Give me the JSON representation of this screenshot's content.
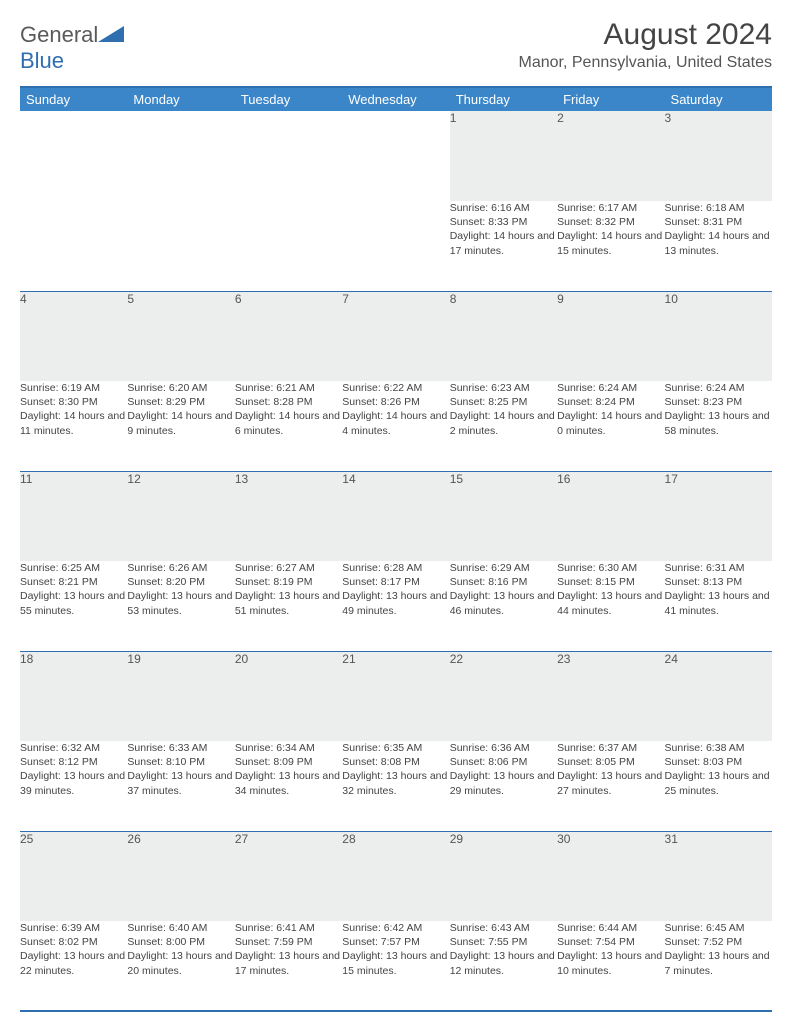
{
  "brand": {
    "part1": "General",
    "part2": "Blue"
  },
  "title": "August 2024",
  "location": "Manor, Pennsylvania, United States",
  "colors": {
    "header_bg": "#3b86c8",
    "header_text": "#ffffff",
    "border": "#2f6fb0",
    "daynum_bg": "#eceded",
    "body_text": "#444444",
    "page_bg": "#ffffff"
  },
  "typography": {
    "title_fontsize": 30,
    "location_fontsize": 16,
    "dayheader_fontsize": 13,
    "daynum_fontsize": 12,
    "detail_fontsize": 10.5
  },
  "layout": {
    "columns": 7,
    "rows": 5,
    "first_day_column": 4
  },
  "day_headers": [
    "Sunday",
    "Monday",
    "Tuesday",
    "Wednesday",
    "Thursday",
    "Friday",
    "Saturday"
  ],
  "weeks": [
    [
      null,
      null,
      null,
      null,
      {
        "n": "1",
        "sunrise": "Sunrise: 6:16 AM",
        "sunset": "Sunset: 8:33 PM",
        "day": "Daylight: 14 hours and 17 minutes."
      },
      {
        "n": "2",
        "sunrise": "Sunrise: 6:17 AM",
        "sunset": "Sunset: 8:32 PM",
        "day": "Daylight: 14 hours and 15 minutes."
      },
      {
        "n": "3",
        "sunrise": "Sunrise: 6:18 AM",
        "sunset": "Sunset: 8:31 PM",
        "day": "Daylight: 14 hours and 13 minutes."
      }
    ],
    [
      {
        "n": "4",
        "sunrise": "Sunrise: 6:19 AM",
        "sunset": "Sunset: 8:30 PM",
        "day": "Daylight: 14 hours and 11 minutes."
      },
      {
        "n": "5",
        "sunrise": "Sunrise: 6:20 AM",
        "sunset": "Sunset: 8:29 PM",
        "day": "Daylight: 14 hours and 9 minutes."
      },
      {
        "n": "6",
        "sunrise": "Sunrise: 6:21 AM",
        "sunset": "Sunset: 8:28 PM",
        "day": "Daylight: 14 hours and 6 minutes."
      },
      {
        "n": "7",
        "sunrise": "Sunrise: 6:22 AM",
        "sunset": "Sunset: 8:26 PM",
        "day": "Daylight: 14 hours and 4 minutes."
      },
      {
        "n": "8",
        "sunrise": "Sunrise: 6:23 AM",
        "sunset": "Sunset: 8:25 PM",
        "day": "Daylight: 14 hours and 2 minutes."
      },
      {
        "n": "9",
        "sunrise": "Sunrise: 6:24 AM",
        "sunset": "Sunset: 8:24 PM",
        "day": "Daylight: 14 hours and 0 minutes."
      },
      {
        "n": "10",
        "sunrise": "Sunrise: 6:24 AM",
        "sunset": "Sunset: 8:23 PM",
        "day": "Daylight: 13 hours and 58 minutes."
      }
    ],
    [
      {
        "n": "11",
        "sunrise": "Sunrise: 6:25 AM",
        "sunset": "Sunset: 8:21 PM",
        "day": "Daylight: 13 hours and 55 minutes."
      },
      {
        "n": "12",
        "sunrise": "Sunrise: 6:26 AM",
        "sunset": "Sunset: 8:20 PM",
        "day": "Daylight: 13 hours and 53 minutes."
      },
      {
        "n": "13",
        "sunrise": "Sunrise: 6:27 AM",
        "sunset": "Sunset: 8:19 PM",
        "day": "Daylight: 13 hours and 51 minutes."
      },
      {
        "n": "14",
        "sunrise": "Sunrise: 6:28 AM",
        "sunset": "Sunset: 8:17 PM",
        "day": "Daylight: 13 hours and 49 minutes."
      },
      {
        "n": "15",
        "sunrise": "Sunrise: 6:29 AM",
        "sunset": "Sunset: 8:16 PM",
        "day": "Daylight: 13 hours and 46 minutes."
      },
      {
        "n": "16",
        "sunrise": "Sunrise: 6:30 AM",
        "sunset": "Sunset: 8:15 PM",
        "day": "Daylight: 13 hours and 44 minutes."
      },
      {
        "n": "17",
        "sunrise": "Sunrise: 6:31 AM",
        "sunset": "Sunset: 8:13 PM",
        "day": "Daylight: 13 hours and 41 minutes."
      }
    ],
    [
      {
        "n": "18",
        "sunrise": "Sunrise: 6:32 AM",
        "sunset": "Sunset: 8:12 PM",
        "day": "Daylight: 13 hours and 39 minutes."
      },
      {
        "n": "19",
        "sunrise": "Sunrise: 6:33 AM",
        "sunset": "Sunset: 8:10 PM",
        "day": "Daylight: 13 hours and 37 minutes."
      },
      {
        "n": "20",
        "sunrise": "Sunrise: 6:34 AM",
        "sunset": "Sunset: 8:09 PM",
        "day": "Daylight: 13 hours and 34 minutes."
      },
      {
        "n": "21",
        "sunrise": "Sunrise: 6:35 AM",
        "sunset": "Sunset: 8:08 PM",
        "day": "Daylight: 13 hours and 32 minutes."
      },
      {
        "n": "22",
        "sunrise": "Sunrise: 6:36 AM",
        "sunset": "Sunset: 8:06 PM",
        "day": "Daylight: 13 hours and 29 minutes."
      },
      {
        "n": "23",
        "sunrise": "Sunrise: 6:37 AM",
        "sunset": "Sunset: 8:05 PM",
        "day": "Daylight: 13 hours and 27 minutes."
      },
      {
        "n": "24",
        "sunrise": "Sunrise: 6:38 AM",
        "sunset": "Sunset: 8:03 PM",
        "day": "Daylight: 13 hours and 25 minutes."
      }
    ],
    [
      {
        "n": "25",
        "sunrise": "Sunrise: 6:39 AM",
        "sunset": "Sunset: 8:02 PM",
        "day": "Daylight: 13 hours and 22 minutes."
      },
      {
        "n": "26",
        "sunrise": "Sunrise: 6:40 AM",
        "sunset": "Sunset: 8:00 PM",
        "day": "Daylight: 13 hours and 20 minutes."
      },
      {
        "n": "27",
        "sunrise": "Sunrise: 6:41 AM",
        "sunset": "Sunset: 7:59 PM",
        "day": "Daylight: 13 hours and 17 minutes."
      },
      {
        "n": "28",
        "sunrise": "Sunrise: 6:42 AM",
        "sunset": "Sunset: 7:57 PM",
        "day": "Daylight: 13 hours and 15 minutes."
      },
      {
        "n": "29",
        "sunrise": "Sunrise: 6:43 AM",
        "sunset": "Sunset: 7:55 PM",
        "day": "Daylight: 13 hours and 12 minutes."
      },
      {
        "n": "30",
        "sunrise": "Sunrise: 6:44 AM",
        "sunset": "Sunset: 7:54 PM",
        "day": "Daylight: 13 hours and 10 minutes."
      },
      {
        "n": "31",
        "sunrise": "Sunrise: 6:45 AM",
        "sunset": "Sunset: 7:52 PM",
        "day": "Daylight: 13 hours and 7 minutes."
      }
    ]
  ]
}
